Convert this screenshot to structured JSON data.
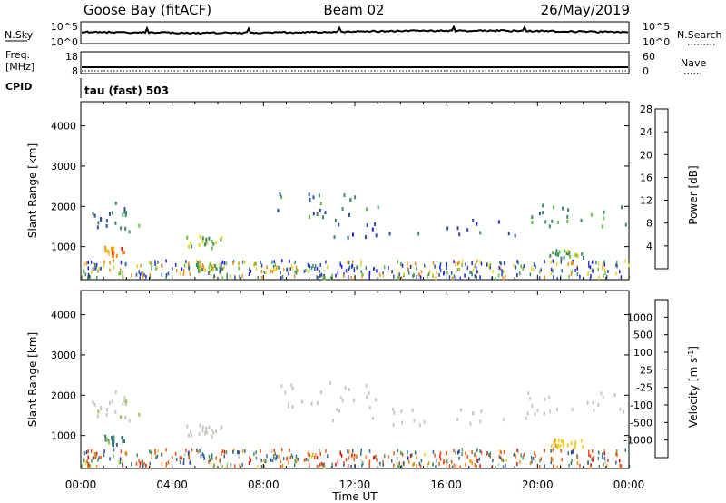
{
  "header": {
    "station": "Goose Bay (fitACF)",
    "beam": "Beam 02",
    "date": "26/May/2019"
  },
  "noise_panel": {
    "left_label": "N.Sky",
    "right_label": "N.Search",
    "left_ticks": [
      "10^5",
      "10^0"
    ],
    "right_ticks": [
      "10^5",
      "10^0"
    ]
  },
  "freq_panel": {
    "left_label_1": "Freq.",
    "left_label_2": "[MHz]",
    "right_label": "Nave",
    "left_ticks": [
      "18",
      "8"
    ],
    "right_ticks": [
      "60",
      "0"
    ]
  },
  "cpid_panel": {
    "label": "CPID",
    "mode": "tau (fast) 503"
  },
  "time_axis": {
    "label": "Time UT",
    "ticks": [
      "00:00",
      "04:00",
      "08:00",
      "12:00",
      "16:00",
      "20:00",
      "00:00"
    ]
  },
  "range_axis": {
    "label": "Slant Range [km]",
    "ticks": [
      "1000",
      "2000",
      "3000",
      "4000"
    ]
  },
  "power_scale": {
    "label": "Power [dB]",
    "ticks": [
      "4",
      "8",
      "12",
      "16",
      "20",
      "24",
      "28"
    ],
    "colors": [
      "#1f1ff0",
      "#2a4fa8",
      "#3c8a6e",
      "#5fbf3f",
      "#e8d21a",
      "#f28c10",
      "#e01010"
    ]
  },
  "velocity_scale": {
    "label": "Velocity [m s",
    "label_sup": "-1",
    "label_end": "]",
    "ticks": [
      "1000",
      "500",
      "100",
      "25",
      "-25",
      "-100",
      "-500",
      "-1000"
    ],
    "colors": [
      "#1f3fb0",
      "#2e6e8a",
      "#4a9a5a",
      "#8acd3a",
      "#c8c8c0",
      "#f0d020",
      "#f09010",
      "#f05010",
      "#e01010"
    ]
  },
  "chart_data": [
    {
      "type": "heatmap",
      "title": "Power",
      "xlabel": "Time UT",
      "ylabel": "Slant Range [km]",
      "xlim": [
        "00:00",
        "24:00"
      ],
      "ylim": [
        180,
        4600
      ],
      "colorbar": {
        "label": "Power [dB]",
        "range": [
          0,
          30
        ]
      },
      "echo_regions": [
        {
          "t_start": 0.0,
          "t_end": 2.6,
          "range_start": 1350,
          "range_end": 2200,
          "value_db": 9
        },
        {
          "t_start": 1.0,
          "t_end": 1.9,
          "range_start": 750,
          "range_end": 1000,
          "value_db": 22
        },
        {
          "t_start": 4.5,
          "t_end": 6.2,
          "range_start": 950,
          "range_end": 1250,
          "value_db": 15
        },
        {
          "t_start": 5.0,
          "t_end": 6.2,
          "range_start": 380,
          "range_end": 560,
          "value_db": 14
        },
        {
          "t_start": 8.6,
          "t_end": 13.0,
          "range_start": 1650,
          "range_end": 2300,
          "value_db": 10
        },
        {
          "t_start": 11.0,
          "t_end": 19.5,
          "range_start": 1200,
          "range_end": 1650,
          "value_db": 8
        },
        {
          "t_start": 19.5,
          "t_end": 24.0,
          "range_start": 1500,
          "range_end": 2050,
          "value_db": 12
        },
        {
          "t_start": 20.5,
          "t_end": 22.0,
          "range_start": 700,
          "range_end": 900,
          "value_db": 15
        }
      ]
    },
    {
      "type": "heatmap",
      "title": "Velocity",
      "xlabel": "Time UT",
      "ylabel": "Slant Range [km]",
      "xlim": [
        "00:00",
        "24:00"
      ],
      "ylim": [
        180,
        4600
      ],
      "colorbar": {
        "label": "Velocity [m s-1]",
        "range": [
          -1000,
          1000
        ]
      },
      "echo_regions": [
        {
          "t_start": 0.0,
          "t_end": 2.6,
          "range_start": 1350,
          "range_end": 2200,
          "value_ms": 10
        },
        {
          "t_start": 1.0,
          "t_end": 1.9,
          "range_start": 750,
          "range_end": 1000,
          "value_ms": 300
        },
        {
          "t_start": 4.5,
          "t_end": 6.2,
          "range_start": 950,
          "range_end": 1250,
          "value_ms": 0
        },
        {
          "t_start": 8.6,
          "t_end": 13.0,
          "range_start": 1650,
          "range_end": 2300,
          "value_ms": 0
        },
        {
          "t_start": 11.0,
          "t_end": 19.5,
          "range_start": 1200,
          "range_end": 1650,
          "value_ms": 0
        },
        {
          "t_start": 19.5,
          "t_end": 24.0,
          "range_start": 1500,
          "range_end": 2050,
          "value_ms": 0
        },
        {
          "t_start": 20.5,
          "t_end": 22.0,
          "range_start": 700,
          "range_end": 900,
          "value_ms": -50
        }
      ]
    }
  ]
}
